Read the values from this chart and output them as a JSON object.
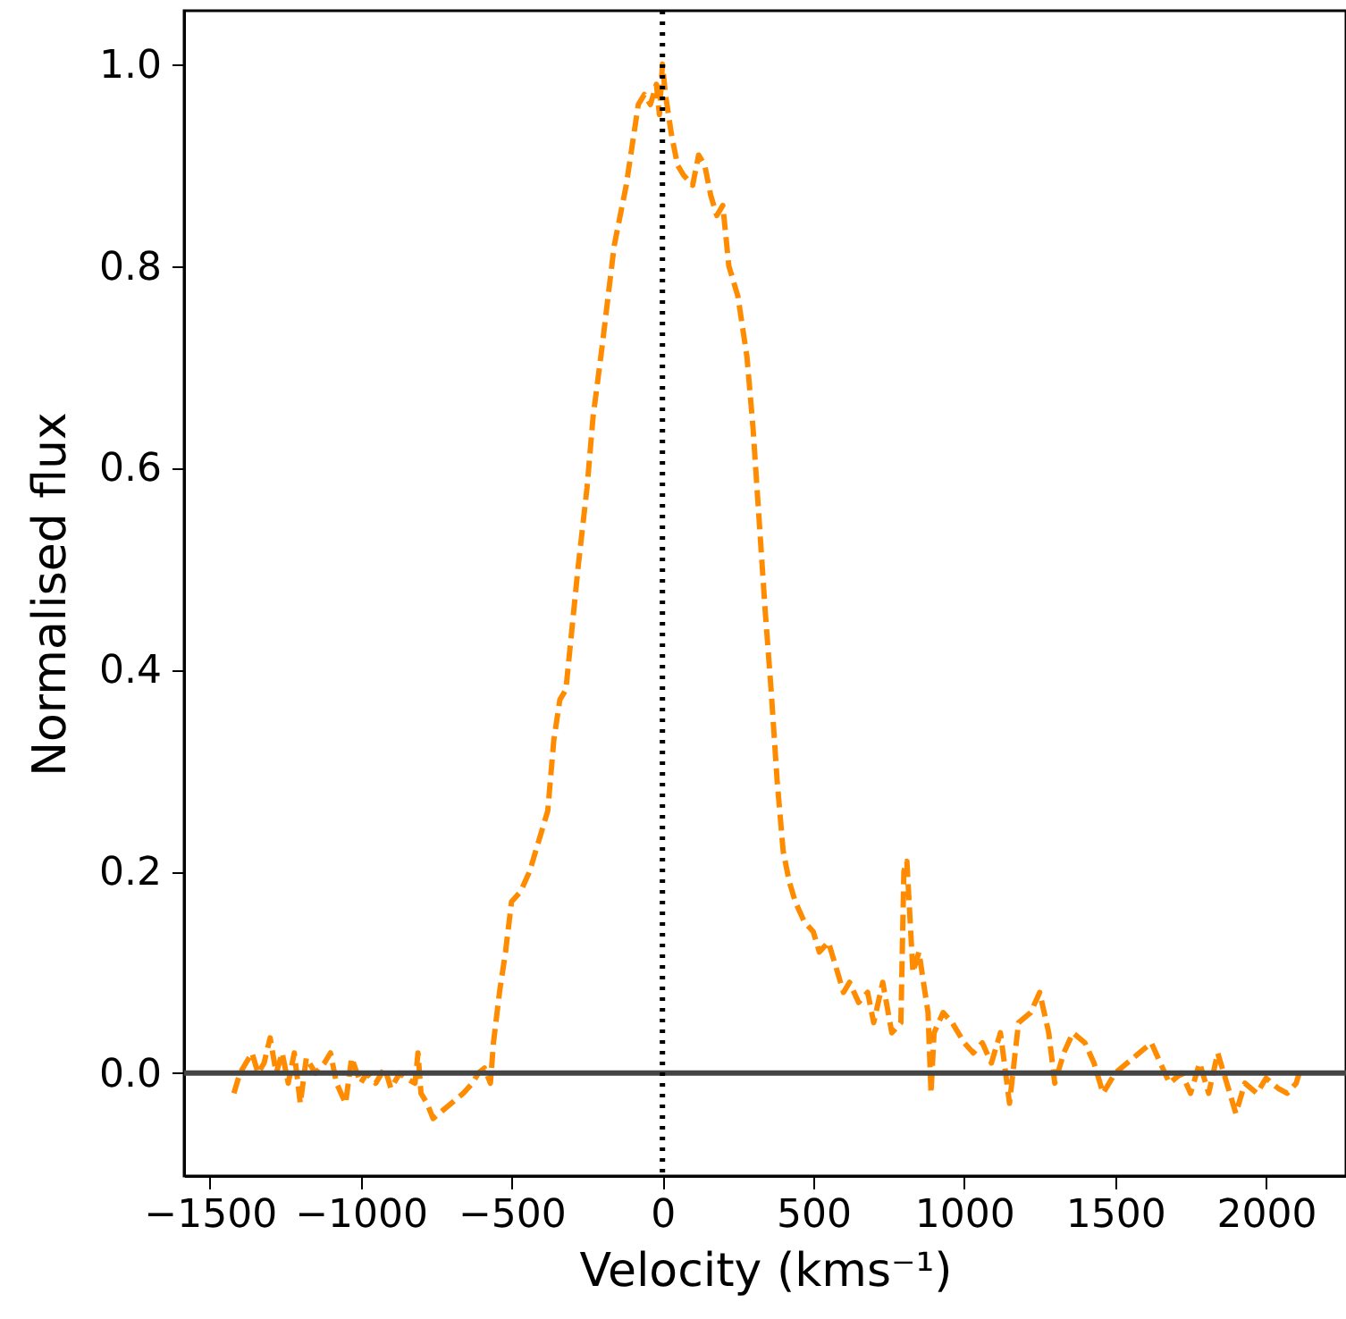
{
  "chart_data": {
    "type": "line",
    "xlabel": "Velocity (kms⁻¹)",
    "ylabel": "Normalised flux",
    "xlim": [
      -1585,
      2265
    ],
    "ylim": [
      -0.102,
      1.053
    ],
    "xticks": [
      {
        "value": -1500,
        "label": "−1500"
      },
      {
        "value": -1000,
        "label": "−1000"
      },
      {
        "value": -500,
        "label": "−500"
      },
      0,
      500,
      1000,
      1500,
      2000
    ],
    "yticks": [
      {
        "value": 0,
        "label": "0.0"
      },
      {
        "value": 0.2,
        "label": "0.2"
      },
      {
        "value": 0.4,
        "label": "0.4"
      },
      {
        "value": 0.6,
        "label": "0.6"
      },
      {
        "value": 0.8,
        "label": "0.8"
      },
      {
        "value": 1,
        "label": "1.0"
      }
    ],
    "grid": false,
    "line_style": "dashed",
    "marker": "none",
    "ref_lines": [
      {
        "axis": "y",
        "value": 0,
        "color": "#444444",
        "line_style": "solid"
      },
      {
        "axis": "x",
        "value": 0,
        "color": "#000000",
        "line_style": "dotted"
      }
    ],
    "series": [
      {
        "color": "#ff8c00",
        "x": [
          -1420,
          -1400,
          -1380,
          -1360,
          -1340,
          -1320,
          -1300,
          -1280,
          -1260,
          -1240,
          -1220,
          -1200,
          -1180,
          -1150,
          -1120,
          -1100,
          -1080,
          -1050,
          -1030,
          -1000,
          -980,
          -950,
          -920,
          -900,
          -870,
          -850,
          -820,
          -810,
          -800,
          -780,
          -760,
          -740,
          -700,
          -660,
          -630,
          -610,
          -590,
          -570,
          -560,
          -540,
          -520,
          -500,
          -470,
          -440,
          -420,
          -400,
          -380,
          -360,
          -340,
          -320,
          -300,
          -280,
          -250,
          -230,
          -200,
          -180,
          -160,
          -140,
          -120,
          -100,
          -80,
          -60,
          -40,
          -20,
          -10,
          0,
          10,
          30,
          50,
          70,
          100,
          120,
          140,
          160,
          180,
          200,
          220,
          250,
          280,
          300,
          320,
          340,
          360,
          380,
          400,
          420,
          440,
          470,
          500,
          520,
          550,
          580,
          600,
          620,
          650,
          680,
          700,
          730,
          760,
          790,
          800,
          810,
          830,
          850,
          870,
          880,
          890,
          900,
          930,
          960,
          1000,
          1030,
          1060,
          1090,
          1120,
          1150,
          1180,
          1220,
          1250,
          1280,
          1300,
          1330,
          1360,
          1400,
          1430,
          1460,
          1500,
          1540,
          1580,
          1620,
          1650,
          1680,
          1720,
          1750,
          1780,
          1810,
          1840,
          1870,
          1900,
          1930,
          1970,
          2000,
          2040,
          2070,
          2100,
          2110
        ],
        "values": [
          -0.02,
          0.0,
          0.01,
          0.02,
          0.0,
          0.01,
          0.035,
          0.0,
          0.02,
          -0.01,
          0.02,
          -0.03,
          0.015,
          0.0,
          0.01,
          0.02,
          -0.01,
          -0.03,
          0.015,
          -0.01,
          0.0,
          -0.01,
          0.005,
          -0.015,
          0.0,
          -0.005,
          -0.01,
          0.02,
          -0.02,
          -0.03,
          -0.045,
          -0.04,
          -0.03,
          -0.02,
          -0.01,
          0.0,
          0.005,
          -0.01,
          0.03,
          0.08,
          0.12,
          0.17,
          0.18,
          0.2,
          0.22,
          0.24,
          0.26,
          0.33,
          0.37,
          0.38,
          0.44,
          0.5,
          0.58,
          0.65,
          0.72,
          0.77,
          0.82,
          0.85,
          0.88,
          0.92,
          0.96,
          0.97,
          0.96,
          0.98,
          0.95,
          1.0,
          0.97,
          0.93,
          0.9,
          0.89,
          0.88,
          0.91,
          0.9,
          0.87,
          0.85,
          0.86,
          0.8,
          0.77,
          0.71,
          0.64,
          0.55,
          0.46,
          0.38,
          0.29,
          0.22,
          0.19,
          0.17,
          0.15,
          0.14,
          0.12,
          0.13,
          0.1,
          0.08,
          0.09,
          0.07,
          0.08,
          0.05,
          0.09,
          0.04,
          0.05,
          0.2,
          0.21,
          0.1,
          0.12,
          0.08,
          0.06,
          -0.02,
          0.04,
          0.06,
          0.05,
          0.03,
          0.02,
          0.03,
          0.01,
          0.04,
          -0.03,
          0.05,
          0.06,
          0.08,
          0.04,
          -0.01,
          0.02,
          0.04,
          0.03,
          0.01,
          -0.02,
          0.0,
          0.01,
          0.02,
          0.03,
          0.01,
          -0.01,
          0.0,
          -0.02,
          0.01,
          -0.02,
          0.02,
          -0.01,
          -0.04,
          -0.01,
          -0.02,
          -0.005,
          -0.015,
          -0.02,
          -0.01,
          0.0
        ]
      }
    ]
  }
}
